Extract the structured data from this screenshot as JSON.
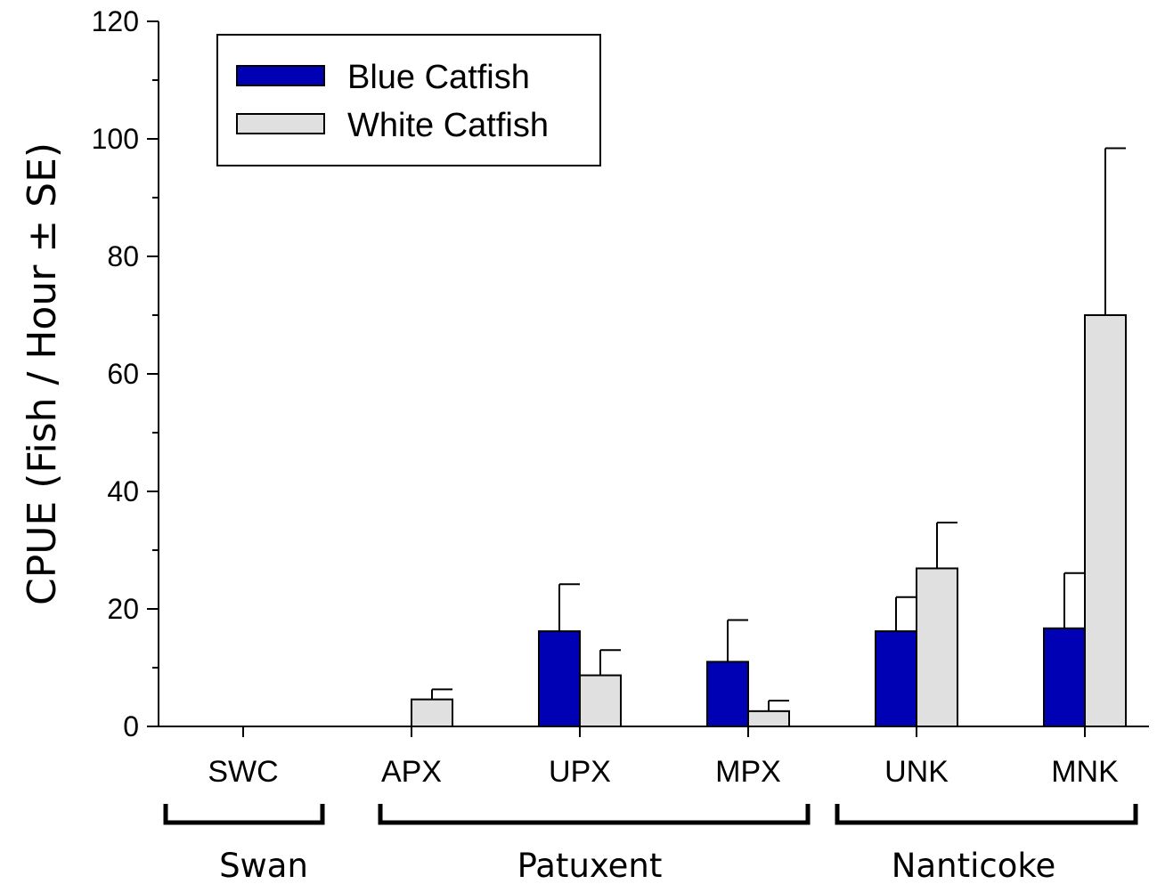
{
  "chart_data": {
    "type": "bar",
    "title": "",
    "xlabel": "",
    "ylabel": "CPUE (Fish / Hour ± SE)",
    "ylim": [
      0,
      120
    ],
    "yticks": [
      0,
      20,
      40,
      60,
      80,
      100,
      120
    ],
    "ytick_labels": [
      "0",
      "20",
      "40",
      "60",
      "80",
      "100",
      "120"
    ],
    "grid": false,
    "legend_position": "top-left",
    "categories": [
      "SWC",
      "APX",
      "UPX",
      "MPX",
      "UNK",
      "MNK"
    ],
    "groups": [
      {
        "label": "Swan",
        "categories": [
          "SWC"
        ]
      },
      {
        "label": "Patuxent",
        "categories": [
          "APX",
          "UPX",
          "MPX"
        ]
      },
      {
        "label": "Nanticoke",
        "categories": [
          "UNK",
          "MNK"
        ]
      }
    ],
    "series": [
      {
        "name": "Blue Catfish",
        "color": "#0000b4",
        "values": [
          0,
          0,
          16.2,
          11.0,
          16.2,
          16.7
        ],
        "se": [
          0,
          0,
          8.0,
          7.1,
          5.8,
          9.4
        ]
      },
      {
        "name": "White Catfish",
        "color": "#e0e0e0",
        "values": [
          0,
          4.6,
          8.7,
          2.6,
          26.9,
          70.0
        ],
        "se": [
          0,
          1.7,
          4.3,
          1.8,
          7.8,
          28.4
        ]
      }
    ]
  }
}
